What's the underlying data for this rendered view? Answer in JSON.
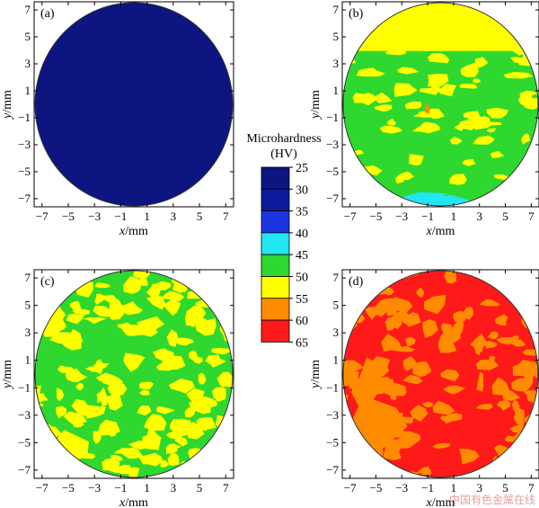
{
  "chart_data": {
    "type": "heatmap",
    "xlabel_var": "x",
    "xlabel_unit": "/mm",
    "ylabel_var": "y",
    "ylabel_unit": "/mm",
    "x_ticks": [
      -7,
      -5,
      -3,
      -1,
      1,
      3,
      5,
      7
    ],
    "y_ticks": [
      -7,
      -5,
      -3,
      -1,
      1,
      3,
      5,
      7
    ],
    "xlim": [
      -7.6,
      7.6
    ],
    "ylim": [
      -7.6,
      7.6
    ],
    "colorbar": {
      "title_line1": "Microhardness",
      "title_line2": "(HV)",
      "ticks": [
        25,
        30,
        35,
        40,
        45,
        50,
        55,
        60,
        65
      ],
      "colors": [
        "#0c1580",
        "#0c1a9c",
        "#1b35e0",
        "#22e6f2",
        "#2fd82f",
        "#ffff00",
        "#ff8c00",
        "#ff1a1a"
      ]
    },
    "panels": [
      {
        "tag": "(a)",
        "base_color": "#0c1580",
        "blob_colors": []
      },
      {
        "tag": "(b)",
        "base_color": "#2fd82f",
        "blob_colors": [
          "#ffff00",
          "#22e6f2",
          "#ff8c00"
        ]
      },
      {
        "tag": "(c)",
        "base_color": "#2fd82f",
        "blob_colors": [
          "#ffff00"
        ]
      },
      {
        "tag": "(d)",
        "base_color": "#ff1a1a",
        "blob_colors": [
          "#ff8c00"
        ]
      }
    ],
    "watermark": "中国有色金属在线"
  }
}
